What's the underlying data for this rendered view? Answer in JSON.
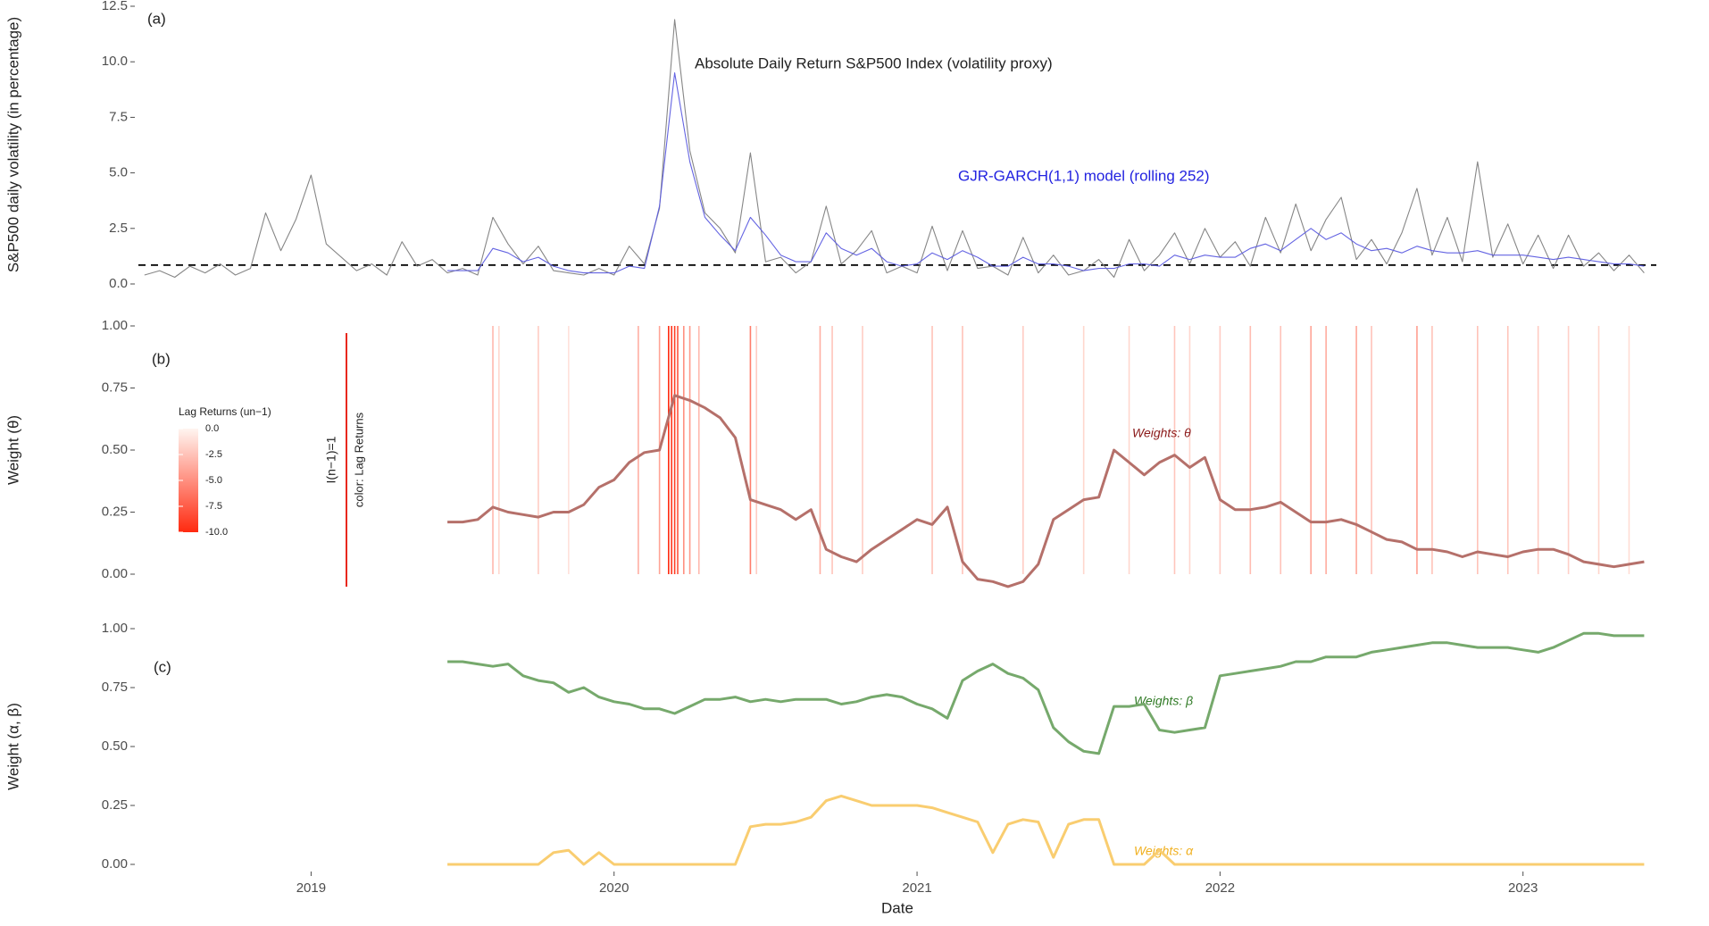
{
  "chart_data": [
    {
      "type": "line",
      "panel": "(a)",
      "ylabel": "S&P500 daily volatility (in percentage)",
      "annotation": "Absolute Daily Return S&P500 Index (volatility proxy)",
      "model_annotation": "GJR-GARCH(1,1) model (rolling 252)",
      "xlim": [
        2018.43,
        2023.44
      ],
      "ylim": [
        0,
        12.5
      ],
      "yticks": [
        {
          "value": 0,
          "label": "0.0"
        },
        2.5,
        {
          "value": 5,
          "label": "5.0"
        },
        7.5,
        {
          "value": 10,
          "label": "10.0"
        },
        12.5
      ],
      "hline": 0.85,
      "hline_color": "#000000",
      "x": [
        2018.45,
        2018.5,
        2018.55,
        2018.6,
        2018.65,
        2018.7,
        2018.75,
        2018.8,
        2018.85,
        2018.9,
        2018.95,
        2019,
        2019.05,
        2019.1,
        2019.15,
        2019.2,
        2019.25,
        2019.3,
        2019.35,
        2019.4,
        2019.45,
        2019.5,
        2019.55,
        2019.6,
        2019.65,
        2019.7,
        2019.75,
        2019.8,
        2019.85,
        2019.9,
        2019.95,
        2020,
        2020.05,
        2020.1,
        2020.15,
        2020.2,
        2020.25,
        2020.3,
        2020.35,
        2020.4,
        2020.45,
        2020.5,
        2020.55,
        2020.6,
        2020.65,
        2020.7,
        2020.75,
        2020.8,
        2020.85,
        2020.9,
        2020.95,
        2021,
        2021.05,
        2021.1,
        2021.15,
        2021.2,
        2021.25,
        2021.3,
        2021.35,
        2021.4,
        2021.45,
        2021.5,
        2021.55,
        2021.6,
        2021.65,
        2021.7,
        2021.75,
        2021.8,
        2021.85,
        2021.9,
        2021.95,
        2022,
        2022.05,
        2022.1,
        2022.15,
        2022.2,
        2022.25,
        2022.3,
        2022.35,
        2022.4,
        2022.45,
        2022.5,
        2022.55,
        2022.6,
        2022.65,
        2022.7,
        2022.75,
        2022.8,
        2022.85,
        2022.9,
        2022.95,
        2023,
        2023.05,
        2023.1,
        2023.15,
        2023.2,
        2023.25,
        2023.3,
        2023.35,
        2023.4
      ],
      "series": [
        {
          "color": "#808080",
          "values": [
            0.4,
            0.6,
            0.3,
            0.8,
            0.5,
            0.9,
            0.4,
            0.7,
            3.2,
            1.5,
            2.9,
            4.9,
            1.8,
            1.2,
            0.6,
            0.9,
            0.4,
            1.9,
            0.8,
            1.1,
            0.5,
            0.7,
            0.4,
            3.0,
            1.8,
            0.9,
            1.7,
            0.6,
            0.5,
            0.4,
            0.7,
            0.4,
            1.7,
            0.9,
            3.4,
            11.9,
            6.0,
            3.2,
            2.5,
            1.4,
            5.9,
            1.0,
            1.2,
            0.5,
            1.0,
            3.5,
            0.9,
            1.5,
            2.4,
            0.5,
            0.8,
            0.5,
            2.6,
            0.6,
            2.4,
            0.7,
            0.8,
            0.4,
            2.1,
            0.5,
            1.3,
            0.4,
            0.6,
            1.1,
            0.3,
            2.0,
            0.6,
            1.3,
            2.3,
            0.9,
            2.5,
            1.2,
            1.9,
            0.8,
            3.0,
            1.4,
            3.6,
            1.5,
            2.9,
            3.9,
            1.1,
            2.0,
            0.9,
            2.3,
            4.3,
            1.3,
            3.0,
            1.0,
            5.5,
            1.2,
            2.7,
            0.9,
            2.2,
            0.7,
            2.2,
            0.8,
            1.4,
            0.6,
            1.3,
            0.5
          ]
        },
        {
          "color": "#5c5ce0",
          "values": [
            null,
            null,
            null,
            null,
            null,
            null,
            null,
            null,
            null,
            null,
            null,
            null,
            null,
            null,
            null,
            null,
            null,
            null,
            null,
            null,
            0.6,
            0.6,
            0.6,
            1.6,
            1.4,
            1.0,
            1.2,
            0.8,
            0.6,
            0.5,
            0.5,
            0.5,
            0.8,
            0.7,
            3.5,
            9.5,
            5.5,
            3.0,
            2.2,
            1.5,
            3.0,
            2.2,
            1.3,
            1.0,
            1.0,
            2.3,
            1.6,
            1.3,
            1.6,
            1.0,
            0.8,
            0.9,
            1.4,
            1.1,
            1.5,
            1.2,
            0.8,
            0.8,
            1.2,
            0.9,
            0.9,
            0.8,
            0.6,
            0.7,
            0.7,
            0.9,
            0.9,
            0.8,
            1.3,
            1.1,
            1.3,
            1.2,
            1.2,
            1.6,
            1.8,
            1.5,
            2.0,
            2.5,
            2.0,
            2.3,
            1.8,
            1.5,
            1.6,
            1.4,
            1.7,
            1.5,
            1.4,
            1.4,
            1.5,
            1.3,
            1.3,
            1.3,
            1.2,
            1.1,
            1.2,
            1.1,
            1.0,
            0.9,
            0.9,
            0.8
          ]
        }
      ]
    },
    {
      "type": "line",
      "panel": "(b)",
      "ylabel": "Weight (θ)",
      "annotation": "Weights: θ",
      "xlim": [
        2018.43,
        2023.44
      ],
      "ylim": [
        0,
        1
      ],
      "yticks": [
        {
          "value": 0,
          "label": "0.00"
        },
        {
          "value": 0.25,
          "label": "0.25"
        },
        {
          "value": 0.5,
          "label": "0.50"
        },
        {
          "value": 0.75,
          "label": "0.75"
        },
        {
          "value": 1,
          "label": "1.00"
        }
      ],
      "x": [
        2019.45,
        2019.5,
        2019.55,
        2019.6,
        2019.65,
        2019.7,
        2019.75,
        2019.8,
        2019.85,
        2019.9,
        2019.95,
        2020,
        2020.05,
        2020.1,
        2020.15,
        2020.2,
        2020.25,
        2020.3,
        2020.35,
        2020.4,
        2020.45,
        2020.5,
        2020.55,
        2020.6,
        2020.65,
        2020.7,
        2020.75,
        2020.8,
        2020.85,
        2020.9,
        2020.95,
        2021,
        2021.05,
        2021.1,
        2021.15,
        2021.2,
        2021.25,
        2021.3,
        2021.35,
        2021.4,
        2021.45,
        2021.5,
        2021.55,
        2021.6,
        2021.65,
        2021.7,
        2021.75,
        2021.8,
        2021.85,
        2021.9,
        2021.95,
        2022,
        2022.05,
        2022.1,
        2022.15,
        2022.2,
        2022.25,
        2022.3,
        2022.35,
        2022.4,
        2022.45,
        2022.5,
        2022.55,
        2022.6,
        2022.65,
        2022.7,
        2022.75,
        2022.8,
        2022.85,
        2022.9,
        2022.95,
        2023,
        2023.05,
        2023.1,
        2023.15,
        2023.2,
        2023.25,
        2023.3,
        2023.35,
        2023.4
      ],
      "series": [
        {
          "color": "#b5706a",
          "values": [
            0.21,
            0.21,
            0.22,
            0.27,
            0.25,
            0.24,
            0.23,
            0.25,
            0.25,
            0.28,
            0.35,
            0.38,
            0.45,
            0.49,
            0.5,
            0.72,
            0.7,
            0.67,
            0.63,
            0.55,
            0.3,
            0.28,
            0.26,
            0.22,
            0.26,
            0.1,
            0.07,
            0.05,
            0.1,
            0.14,
            0.18,
            0.22,
            0.2,
            0.27,
            0.05,
            -0.02,
            -0.03,
            -0.05,
            -0.03,
            0.04,
            0.22,
            0.26,
            0.3,
            0.31,
            0.5,
            0.45,
            0.4,
            0.45,
            0.48,
            0.43,
            0.47,
            0.3,
            0.26,
            0.26,
            0.27,
            0.29,
            0.25,
            0.21,
            0.21,
            0.22,
            0.2,
            0.17,
            0.14,
            0.13,
            0.1,
            0.1,
            0.09,
            0.07,
            0.09,
            0.08,
            0.07,
            0.09,
            0.1,
            0.1,
            0.08,
            0.05,
            0.04,
            0.03,
            0.04,
            0.05
          ]
        }
      ],
      "lag_returns": {
        "x": [
          2019.6,
          2019.62,
          2019.75,
          2019.85,
          2020.08,
          2020.15,
          2020.18,
          2020.19,
          2020.2,
          2020.21,
          2020.23,
          2020.25,
          2020.28,
          2020.45,
          2020.47,
          2020.68,
          2020.72,
          2020.82,
          2021.05,
          2021.15,
          2021.35,
          2021.55,
          2021.7,
          2021.85,
          2021.9,
          2022.0,
          2022.1,
          2022.2,
          2022.3,
          2022.35,
          2022.45,
          2022.5,
          2022.65,
          2022.7,
          2022.85,
          2022.95,
          2023.05,
          2023.15,
          2023.25,
          2023.35
        ],
        "values": [
          -3,
          -1.5,
          -2,
          -1,
          -3.5,
          -4,
          -10,
          -9.5,
          -9,
          -8,
          -5,
          -4.5,
          -3,
          -5.9,
          -2,
          -3.5,
          -2.4,
          -2,
          -2.5,
          -2.5,
          -2,
          -1.5,
          -1.5,
          -2.3,
          -1.5,
          -2,
          -2.8,
          -2.5,
          -4,
          -3.6,
          -3.9,
          -2.5,
          -4.3,
          -2.5,
          -2.5,
          -2.4,
          -2,
          -1.8,
          -1.6,
          -1.2
        ]
      },
      "colorbar": {
        "title": "Lag Returns (un−1)",
        "clim": [
          -10,
          0
        ],
        "low_color": "#ff2a10",
        "high_color": "#fff5f0",
        "ticks": [
          {
            "value": 0,
            "label": "0.0"
          },
          -2.5,
          {
            "value": -5,
            "label": "-5.0"
          },
          -7.5,
          {
            "value": -10,
            "label": "-10.0"
          }
        ]
      },
      "indicator_legend": {
        "label": "I(n−1)=1",
        "note": "color: Lag Returns",
        "color": "#e8281c"
      }
    },
    {
      "type": "line",
      "panel": "(c)",
      "ylabel": "Weight (α, β)",
      "xlabel": "Date",
      "xlim": [
        2018.43,
        2023.44
      ],
      "ylim": [
        0,
        1
      ],
      "xticks": [
        2019,
        2020,
        2021,
        2022,
        2023
      ],
      "yticks": [
        {
          "value": 0,
          "label": "0.00"
        },
        {
          "value": 0.25,
          "label": "0.25"
        },
        {
          "value": 0.5,
          "label": "0.50"
        },
        {
          "value": 0.75,
          "label": "0.75"
        },
        {
          "value": 1,
          "label": "1.00"
        }
      ],
      "x": [
        2019.45,
        2019.5,
        2019.55,
        2019.6,
        2019.65,
        2019.7,
        2019.75,
        2019.8,
        2019.85,
        2019.9,
        2019.95,
        2020,
        2020.05,
        2020.1,
        2020.15,
        2020.2,
        2020.25,
        2020.3,
        2020.35,
        2020.4,
        2020.45,
        2020.5,
        2020.55,
        2020.6,
        2020.65,
        2020.7,
        2020.75,
        2020.8,
        2020.85,
        2020.9,
        2020.95,
        2021,
        2021.05,
        2021.1,
        2021.15,
        2021.2,
        2021.25,
        2021.3,
        2021.35,
        2021.4,
        2021.45,
        2021.5,
        2021.55,
        2021.6,
        2021.65,
        2021.7,
        2021.75,
        2021.8,
        2021.85,
        2021.9,
        2021.95,
        2022,
        2022.05,
        2022.1,
        2022.15,
        2022.2,
        2022.25,
        2022.3,
        2022.35,
        2022.4,
        2022.45,
        2022.5,
        2022.55,
        2022.6,
        2022.65,
        2022.7,
        2022.75,
        2022.8,
        2022.85,
        2022.9,
        2022.95,
        2023,
        2023.05,
        2023.1,
        2023.15,
        2023.2,
        2023.25,
        2023.3,
        2023.35,
        2023.4
      ],
      "series": [
        {
          "name": "Weights: β",
          "color": "#76a96c",
          "values": [
            0.86,
            0.86,
            0.85,
            0.84,
            0.85,
            0.8,
            0.78,
            0.77,
            0.73,
            0.75,
            0.71,
            0.69,
            0.68,
            0.66,
            0.66,
            0.64,
            0.67,
            0.7,
            0.7,
            0.71,
            0.69,
            0.7,
            0.69,
            0.7,
            0.7,
            0.7,
            0.68,
            0.69,
            0.71,
            0.72,
            0.71,
            0.68,
            0.66,
            0.62,
            0.78,
            0.82,
            0.85,
            0.81,
            0.79,
            0.74,
            0.58,
            0.52,
            0.48,
            0.47,
            0.67,
            0.67,
            0.68,
            0.57,
            0.56,
            0.57,
            0.58,
            0.8,
            0.81,
            0.82,
            0.83,
            0.84,
            0.86,
            0.86,
            0.88,
            0.88,
            0.88,
            0.9,
            0.91,
            0.92,
            0.93,
            0.94,
            0.94,
            0.93,
            0.92,
            0.92,
            0.92,
            0.91,
            0.9,
            0.92,
            0.95,
            0.98,
            0.98,
            0.97,
            0.97,
            0.97
          ]
        },
        {
          "name": "Weights: α",
          "color": "#f9cd70",
          "values": [
            0,
            0,
            0,
            0,
            0,
            0,
            0,
            0.05,
            0.06,
            0,
            0.05,
            0,
            0,
            0,
            0,
            0,
            0,
            0,
            0,
            0,
            0.16,
            0.17,
            0.17,
            0.18,
            0.2,
            0.27,
            0.29,
            0.27,
            0.25,
            0.25,
            0.25,
            0.25,
            0.24,
            0.22,
            0.2,
            0.18,
            0.05,
            0.17,
            0.19,
            0.18,
            0.03,
            0.17,
            0.19,
            0.19,
            0,
            0,
            0,
            0.06,
            0,
            0,
            0,
            0,
            0,
            0,
            0,
            0,
            0,
            0,
            0,
            0,
            0,
            0,
            0,
            0,
            0,
            0,
            0,
            0,
            0,
            0,
            0,
            0,
            0,
            0,
            0,
            0,
            0,
            0,
            0,
            0
          ]
        }
      ]
    }
  ]
}
